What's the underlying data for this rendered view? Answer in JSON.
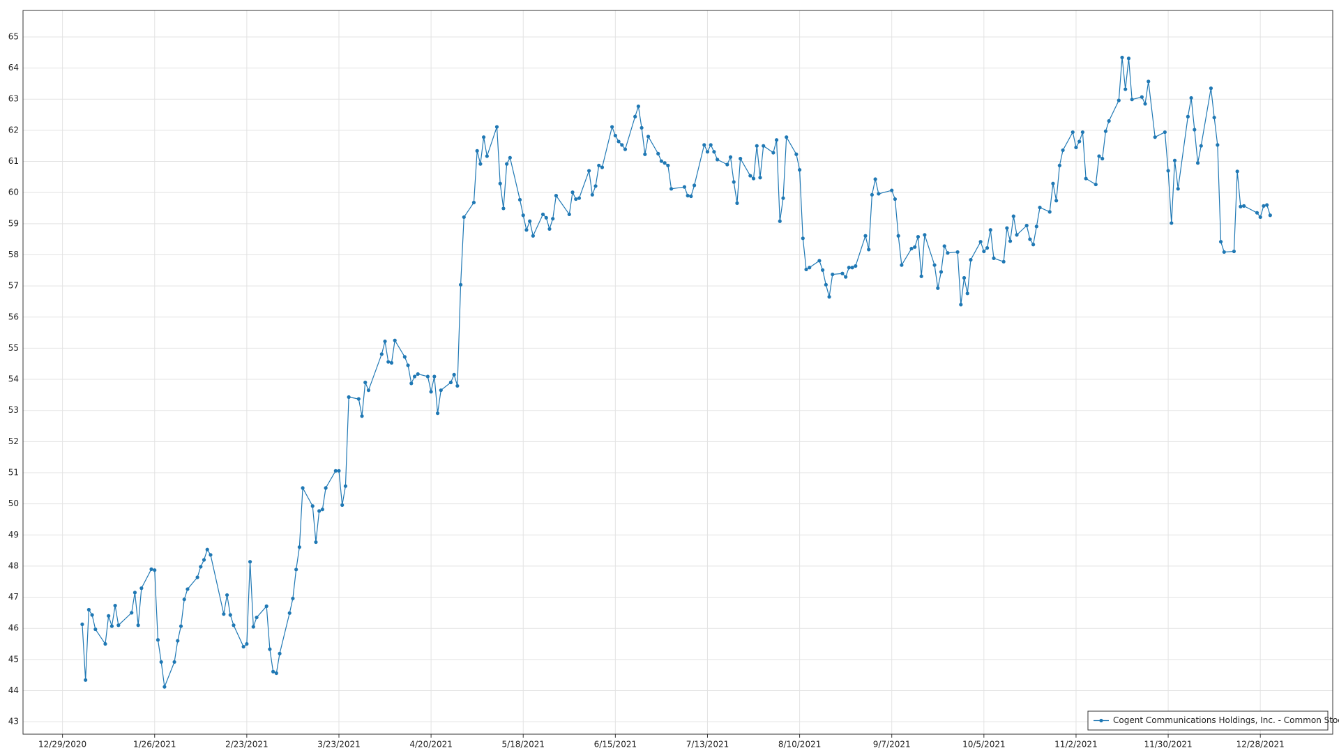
{
  "chart_data": {
    "type": "line",
    "x": [
      "1/4/2021",
      "1/5/2021",
      "1/6/2021",
      "1/7/2021",
      "1/8/2021",
      "1/11/2021",
      "1/12/2021",
      "1/13/2021",
      "1/14/2021",
      "1/15/2021",
      "1/19/2021",
      "1/20/2021",
      "1/21/2021",
      "1/22/2021",
      "1/25/2021",
      "1/26/2021",
      "1/27/2021",
      "1/28/2021",
      "1/29/2021",
      "2/1/2021",
      "2/2/2021",
      "2/3/2021",
      "2/4/2021",
      "2/5/2021",
      "2/8/2021",
      "2/9/2021",
      "2/10/2021",
      "2/11/2021",
      "2/12/2021",
      "2/16/2021",
      "2/17/2021",
      "2/18/2021",
      "2/19/2021",
      "2/22/2021",
      "2/23/2021",
      "2/24/2021",
      "2/25/2021",
      "2/26/2021",
      "3/1/2021",
      "3/2/2021",
      "3/3/2021",
      "3/4/2021",
      "3/5/2021",
      "3/8/2021",
      "3/9/2021",
      "3/10/2021",
      "3/11/2021",
      "3/12/2021",
      "3/15/2021",
      "3/16/2021",
      "3/17/2021",
      "3/18/2021",
      "3/19/2021",
      "3/22/2021",
      "3/23/2021",
      "3/24/2021",
      "3/25/2021",
      "3/26/2021",
      "3/29/2021",
      "3/30/2021",
      "3/31/2021",
      "4/1/2021",
      "4/5/2021",
      "4/6/2021",
      "4/7/2021",
      "4/8/2021",
      "4/9/2021",
      "4/12/2021",
      "4/13/2021",
      "4/14/2021",
      "4/15/2021",
      "4/16/2021",
      "4/19/2021",
      "4/20/2021",
      "4/21/2021",
      "4/22/2021",
      "4/23/2021",
      "4/26/2021",
      "4/27/2021",
      "4/28/2021",
      "4/29/2021",
      "4/30/2021",
      "5/3/2021",
      "5/4/2021",
      "5/5/2021",
      "5/6/2021",
      "5/7/2021",
      "5/10/2021",
      "5/11/2021",
      "5/12/2021",
      "5/13/2021",
      "5/14/2021",
      "5/17/2021",
      "5/18/2021",
      "5/19/2021",
      "5/20/2021",
      "5/21/2021",
      "5/24/2021",
      "5/25/2021",
      "5/26/2021",
      "5/27/2021",
      "5/28/2021",
      "6/1/2021",
      "6/2/2021",
      "6/3/2021",
      "6/4/2021",
      "6/7/2021",
      "6/8/2021",
      "6/9/2021",
      "6/10/2021",
      "6/11/2021",
      "6/14/2021",
      "6/15/2021",
      "6/16/2021",
      "6/17/2021",
      "6/18/2021",
      "6/21/2021",
      "6/22/2021",
      "6/23/2021",
      "6/24/2021",
      "6/25/2021",
      "6/28/2021",
      "6/29/2021",
      "6/30/2021",
      "7/1/2021",
      "7/2/2021",
      "7/6/2021",
      "7/7/2021",
      "7/8/2021",
      "7/9/2021",
      "7/12/2021",
      "7/13/2021",
      "7/14/2021",
      "7/15/2021",
      "7/16/2021",
      "7/19/2021",
      "7/20/2021",
      "7/21/2021",
      "7/22/2021",
      "7/23/2021",
      "7/26/2021",
      "7/27/2021",
      "7/28/2021",
      "7/29/2021",
      "7/30/2021",
      "8/2/2021",
      "8/3/2021",
      "8/4/2021",
      "8/5/2021",
      "8/6/2021",
      "8/9/2021",
      "8/10/2021",
      "8/11/2021",
      "8/12/2021",
      "8/13/2021",
      "8/16/2021",
      "8/17/2021",
      "8/18/2021",
      "8/19/2021",
      "8/20/2021",
      "8/23/2021",
      "8/24/2021",
      "8/25/2021",
      "8/26/2021",
      "8/27/2021",
      "8/30/2021",
      "8/31/2021",
      "9/1/2021",
      "9/2/2021",
      "9/3/2021",
      "9/7/2021",
      "9/8/2021",
      "9/9/2021",
      "9/10/2021",
      "9/13/2021",
      "9/14/2021",
      "9/15/2021",
      "9/16/2021",
      "9/17/2021",
      "9/20/2021",
      "9/21/2021",
      "9/22/2021",
      "9/23/2021",
      "9/24/2021",
      "9/27/2021",
      "9/28/2021",
      "9/29/2021",
      "9/30/2021",
      "10/1/2021",
      "10/4/2021",
      "10/5/2021",
      "10/6/2021",
      "10/7/2021",
      "10/8/2021",
      "10/11/2021",
      "10/12/2021",
      "10/13/2021",
      "10/14/2021",
      "10/15/2021",
      "10/18/2021",
      "10/19/2021",
      "10/20/2021",
      "10/21/2021",
      "10/22/2021",
      "10/25/2021",
      "10/26/2021",
      "10/27/2021",
      "10/28/2021",
      "10/29/2021",
      "11/1/2021",
      "11/2/2021",
      "11/3/2021",
      "11/4/2021",
      "11/5/2021",
      "11/8/2021",
      "11/9/2021",
      "11/10/2021",
      "11/11/2021",
      "11/12/2021",
      "11/15/2021",
      "11/16/2021",
      "11/17/2021",
      "11/18/2021",
      "11/19/2021",
      "11/22/2021",
      "11/23/2021",
      "11/24/2021",
      "11/26/2021",
      "11/29/2021",
      "11/30/2021",
      "12/1/2021",
      "12/2/2021",
      "12/3/2021",
      "12/6/2021",
      "12/7/2021",
      "12/8/2021",
      "12/9/2021",
      "12/10/2021",
      "12/13/2021",
      "12/14/2021",
      "12/15/2021",
      "12/16/2021",
      "12/17/2021",
      "12/20/2021",
      "12/21/2021",
      "12/22/2021",
      "12/23/2021",
      "12/27/2021",
      "12/28/2021",
      "12/29/2021",
      "12/30/2021",
      "12/31/2021"
    ],
    "series": [
      {
        "name": "Cogent Communications Holdings, Inc. - Common Stock",
        "color": "#1f78b4",
        "values": [
          46.13,
          44.34,
          46.6,
          46.43,
          45.97,
          45.5,
          46.4,
          46.07,
          46.73,
          46.1,
          46.5,
          47.15,
          46.1,
          47.29,
          47.9,
          47.87,
          45.63,
          44.92,
          44.12,
          44.92,
          45.6,
          46.07,
          46.93,
          47.26,
          47.64,
          47.98,
          48.2,
          48.53,
          48.36,
          46.46,
          47.07,
          46.43,
          46.1,
          45.41,
          45.5,
          48.14,
          46.05,
          46.35,
          46.71,
          45.33,
          44.61,
          44.56,
          45.19,
          46.49,
          46.96,
          47.89,
          48.61,
          50.51,
          49.93,
          48.77,
          49.77,
          49.82,
          50.51,
          51.06,
          51.06,
          49.96,
          50.57,
          53.43,
          53.37,
          52.82,
          53.9,
          53.65,
          54.81,
          55.22,
          54.56,
          54.53,
          55.25,
          54.72,
          54.45,
          53.87,
          54.09,
          54.17,
          54.09,
          53.6,
          54.09,
          52.91,
          53.65,
          53.9,
          54.15,
          53.79,
          57.04,
          59.21,
          59.68,
          61.34,
          60.92,
          61.78,
          61.17,
          62.11,
          60.29,
          59.49,
          60.92,
          61.12,
          59.77,
          59.27,
          58.8,
          59.08,
          58.61,
          59.3,
          59.19,
          58.83,
          59.16,
          59.9,
          59.3,
          60.01,
          59.79,
          59.82,
          60.7,
          59.93,
          60.21,
          60.87,
          60.81,
          62.11,
          61.83,
          61.64,
          61.53,
          61.39,
          62.44,
          62.77,
          62.08,
          61.23,
          61.8,
          61.25,
          61.01,
          60.95,
          60.87,
          60.12,
          60.18,
          59.9,
          59.88,
          60.23,
          61.53,
          61.31,
          61.53,
          61.31,
          61.06,
          60.9,
          61.14,
          60.34,
          59.66,
          61.09,
          60.54,
          60.45,
          61.5,
          60.48,
          61.5,
          61.28,
          61.69,
          59.08,
          59.82,
          61.78,
          61.23,
          60.73,
          58.53,
          57.53,
          57.59,
          57.81,
          57.51,
          57.04,
          56.65,
          57.37,
          57.4,
          57.29,
          57.59,
          57.59,
          57.64,
          58.61,
          58.17,
          59.93,
          60.43,
          59.96,
          60.07,
          59.79,
          58.61,
          57.67,
          58.2,
          58.25,
          58.58,
          57.31,
          58.64,
          57.67,
          56.93,
          57.45,
          58.28,
          58.06,
          58.09,
          56.4,
          57.26,
          56.76,
          57.84,
          58.42,
          58.11,
          58.22,
          58.8,
          57.89,
          57.78,
          58.86,
          58.44,
          59.24,
          58.64,
          58.94,
          58.5,
          58.33,
          58.91,
          59.52,
          59.38,
          60.29,
          59.74,
          60.87,
          61.36,
          61.94,
          61.45,
          61.64,
          61.94,
          60.45,
          60.26,
          61.17,
          61.09,
          61.97,
          62.3,
          62.96,
          64.34,
          63.32,
          64.31,
          62.99,
          63.07,
          62.85,
          63.57,
          61.78,
          61.94,
          60.7,
          59.02,
          61.03,
          60.12,
          62.44,
          63.04,
          62.02,
          60.95,
          61.5,
          63.35,
          62.41,
          61.53,
          58.42,
          58.09,
          58.11,
          60.68,
          59.55,
          59.57,
          59.35,
          59.21,
          59.57,
          59.6,
          59.27
        ]
      }
    ],
    "xlim": [
      "12/17/2020",
      "1/19/2022"
    ],
    "xticks": [
      "12/29/2020",
      "1/26/2021",
      "2/23/2021",
      "3/23/2021",
      "4/20/2021",
      "5/18/2021",
      "6/15/2021",
      "7/13/2021",
      "8/10/2021",
      "9/7/2021",
      "10/5/2021",
      "11/2/2021",
      "11/30/2021",
      "12/28/2021"
    ],
    "ylim": [
      42.6,
      65.85
    ],
    "yticks": [
      43,
      44,
      45,
      46,
      47,
      48,
      49,
      50,
      51,
      52,
      53,
      54,
      55,
      56,
      57,
      58,
      59,
      60,
      61,
      62,
      63,
      64,
      65
    ],
    "grid": true,
    "markers": true,
    "legend": "lower right"
  }
}
